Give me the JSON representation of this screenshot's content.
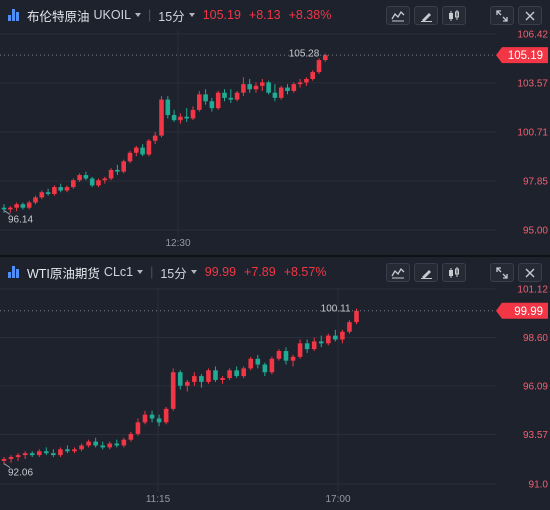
{
  "panels": [
    {
      "name": "布伦特原油",
      "symbol": "UKOIL",
      "timeframe": "15分",
      "last": "105.19",
      "change": "+8.13",
      "change_pct": "+8.38%",
      "y_labels": [
        "106.42",
        "103.57",
        "100.71",
        "97.85",
        "95.00"
      ],
      "current_label": "105.19",
      "high_label": "105.28",
      "low_label": "96.14",
      "time_labels": [
        "12:30"
      ]
    },
    {
      "name": "WTI原油期货",
      "symbol": "CLc1",
      "timeframe": "15分",
      "last": "99.99",
      "change": "+7.89",
      "change_pct": "+8.57%",
      "y_labels": [
        "101.12",
        "98.60",
        "96.09",
        "93.57",
        "91.0"
      ],
      "current_label": "99.99",
      "high_label": "100.11",
      "low_label": "92.06",
      "time_labels": [
        "11:15",
        "17:00"
      ]
    }
  ],
  "icons": [
    "bar-chart-logo-icon",
    "chevron-down-icon",
    "indicator-icon",
    "draw-pencil-icon",
    "candlestick-icon",
    "expand-icon",
    "close-icon"
  ],
  "colors": {
    "up": "#f23645",
    "down": "#22ab94",
    "accent": "#4f8ef7"
  },
  "chart_data": [
    {
      "type": "candlestick",
      "title": "布伦特原油 UKOIL 15分",
      "ylim": [
        95.0,
        106.42
      ],
      "y_ticks": [
        106.42,
        103.57,
        100.71,
        97.85,
        95.0
      ],
      "x_ticks": [
        "12:30"
      ],
      "grid": true,
      "last": 105.19,
      "high": 105.28,
      "low": 96.14,
      "candles": [
        [
          96.3,
          96.5,
          96.0,
          96.2
        ],
        [
          96.2,
          96.4,
          96.0,
          96.3
        ],
        [
          96.3,
          96.6,
          96.1,
          96.5
        ],
        [
          96.5,
          96.6,
          96.2,
          96.3
        ],
        [
          96.3,
          96.7,
          96.2,
          96.6
        ],
        [
          96.6,
          97.0,
          96.5,
          96.9
        ],
        [
          96.9,
          97.3,
          96.8,
          97.2
        ],
        [
          97.2,
          97.4,
          97.0,
          97.1
        ],
        [
          97.1,
          97.6,
          97.0,
          97.5
        ],
        [
          97.5,
          97.7,
          97.2,
          97.3
        ],
        [
          97.3,
          97.6,
          97.2,
          97.5
        ],
        [
          97.5,
          98.0,
          97.4,
          97.9
        ],
        [
          97.9,
          98.3,
          97.8,
          98.2
        ],
        [
          98.2,
          98.4,
          97.9,
          98.0
        ],
        [
          98.0,
          98.1,
          97.5,
          97.6
        ],
        [
          97.6,
          98.0,
          97.5,
          97.9
        ],
        [
          97.9,
          98.1,
          97.7,
          98.0
        ],
        [
          98.0,
          98.6,
          97.9,
          98.5
        ],
        [
          98.5,
          98.8,
          98.2,
          98.4
        ],
        [
          98.4,
          99.1,
          98.3,
          99.0
        ],
        [
          99.0,
          99.6,
          98.9,
          99.5
        ],
        [
          99.5,
          99.9,
          99.3,
          99.8
        ],
        [
          99.8,
          100.0,
          99.3,
          99.4
        ],
        [
          99.4,
          100.3,
          99.3,
          100.2
        ],
        [
          100.2,
          100.7,
          100.0,
          100.5
        ],
        [
          100.5,
          102.8,
          100.4,
          102.6
        ],
        [
          102.6,
          102.8,
          101.5,
          101.7
        ],
        [
          101.7,
          102.0,
          101.3,
          101.4
        ],
        [
          101.4,
          101.8,
          101.2,
          101.6
        ],
        [
          101.6,
          102.1,
          101.3,
          101.5
        ],
        [
          101.5,
          102.2,
          101.4,
          102.0
        ],
        [
          102.0,
          103.1,
          101.9,
          102.9
        ],
        [
          102.9,
          103.2,
          102.3,
          102.5
        ],
        [
          102.5,
          102.7,
          101.9,
          102.1
        ],
        [
          102.1,
          103.1,
          102.0,
          103.0
        ],
        [
          103.0,
          103.2,
          102.5,
          102.7
        ],
        [
          102.7,
          103.2,
          102.4,
          102.6
        ],
        [
          102.6,
          103.1,
          102.5,
          103.0
        ],
        [
          103.0,
          103.9,
          102.8,
          103.5
        ],
        [
          103.5,
          103.8,
          103.0,
          103.2
        ],
        [
          103.2,
          103.6,
          103.0,
          103.4
        ],
        [
          103.4,
          103.8,
          103.1,
          103.6
        ],
        [
          103.6,
          103.7,
          102.9,
          103.0
        ],
        [
          103.0,
          103.5,
          102.5,
          102.7
        ],
        [
          102.7,
          103.4,
          102.6,
          103.3
        ],
        [
          103.3,
          103.5,
          102.9,
          103.1
        ],
        [
          103.1,
          103.6,
          103.0,
          103.5
        ],
        [
          103.5,
          103.8,
          103.3,
          103.6
        ],
        [
          103.6,
          103.9,
          103.4,
          103.8
        ],
        [
          103.8,
          104.3,
          103.7,
          104.2
        ],
        [
          104.2,
          105.0,
          104.1,
          104.9
        ],
        [
          104.9,
          105.28,
          104.8,
          105.19
        ]
      ]
    },
    {
      "type": "candlestick",
      "title": "WTI原油期货 CLc1 15分",
      "ylim": [
        91.0,
        101.12
      ],
      "y_ticks": [
        101.12,
        98.6,
        96.09,
        93.57,
        91.0
      ],
      "x_ticks": [
        "11:15",
        "17:00"
      ],
      "grid": true,
      "last": 99.99,
      "high": 100.11,
      "low": 92.06,
      "candles": [
        [
          92.2,
          92.4,
          92.0,
          92.3
        ],
        [
          92.3,
          92.5,
          92.1,
          92.4
        ],
        [
          92.4,
          92.6,
          92.2,
          92.5
        ],
        [
          92.5,
          92.7,
          92.3,
          92.6
        ],
        [
          92.6,
          92.7,
          92.4,
          92.5
        ],
        [
          92.5,
          92.8,
          92.4,
          92.7
        ],
        [
          92.7,
          92.9,
          92.5,
          92.6
        ],
        [
          92.6,
          92.8,
          92.4,
          92.5
        ],
        [
          92.5,
          92.9,
          92.4,
          92.8
        ],
        [
          92.8,
          93.0,
          92.6,
          92.7
        ],
        [
          92.7,
          92.9,
          92.6,
          92.8
        ],
        [
          92.8,
          93.1,
          92.7,
          93.0
        ],
        [
          93.0,
          93.3,
          92.9,
          93.2
        ],
        [
          93.2,
          93.4,
          92.9,
          93.0
        ],
        [
          93.0,
          93.2,
          92.8,
          92.9
        ],
        [
          92.9,
          93.2,
          92.8,
          93.1
        ],
        [
          93.1,
          93.3,
          92.9,
          93.0
        ],
        [
          93.0,
          93.4,
          92.9,
          93.3
        ],
        [
          93.3,
          93.7,
          93.2,
          93.6
        ],
        [
          93.6,
          94.4,
          93.5,
          94.2
        ],
        [
          94.2,
          94.8,
          94.1,
          94.6
        ],
        [
          94.6,
          94.8,
          94.2,
          94.4
        ],
        [
          94.4,
          94.6,
          94.0,
          94.2
        ],
        [
          94.2,
          95.0,
          94.1,
          94.9
        ],
        [
          94.9,
          97.0,
          94.8,
          96.8
        ],
        [
          96.8,
          96.9,
          95.9,
          96.1
        ],
        [
          96.1,
          96.4,
          95.8,
          96.3
        ],
        [
          96.3,
          96.8,
          96.1,
          96.6
        ],
        [
          96.6,
          96.7,
          96.0,
          96.3
        ],
        [
          96.3,
          97.0,
          96.2,
          96.9
        ],
        [
          96.9,
          97.1,
          96.3,
          96.4
        ],
        [
          96.4,
          96.6,
          96.2,
          96.5
        ],
        [
          96.5,
          97.0,
          96.4,
          96.9
        ],
        [
          96.9,
          97.1,
          96.5,
          96.6
        ],
        [
          96.6,
          97.1,
          96.5,
          97.0
        ],
        [
          97.0,
          97.6,
          96.9,
          97.5
        ],
        [
          97.5,
          97.7,
          97.0,
          97.2
        ],
        [
          97.2,
          97.3,
          96.6,
          96.8
        ],
        [
          96.8,
          97.6,
          96.7,
          97.5
        ],
        [
          97.5,
          98.0,
          97.4,
          97.9
        ],
        [
          97.9,
          98.1,
          97.2,
          97.4
        ],
        [
          97.4,
          97.7,
          97.1,
          97.6
        ],
        [
          97.6,
          98.5,
          97.5,
          98.3
        ],
        [
          98.3,
          98.5,
          97.8,
          98.0
        ],
        [
          98.0,
          98.6,
          97.9,
          98.4
        ],
        [
          98.4,
          98.7,
          98.1,
          98.3
        ],
        [
          98.3,
          98.8,
          98.2,
          98.7
        ],
        [
          98.7,
          99.0,
          98.4,
          98.5
        ],
        [
          98.5,
          99.0,
          98.3,
          98.9
        ],
        [
          98.9,
          99.5,
          98.8,
          99.4
        ],
        [
          99.4,
          100.11,
          99.3,
          99.99
        ]
      ]
    }
  ]
}
